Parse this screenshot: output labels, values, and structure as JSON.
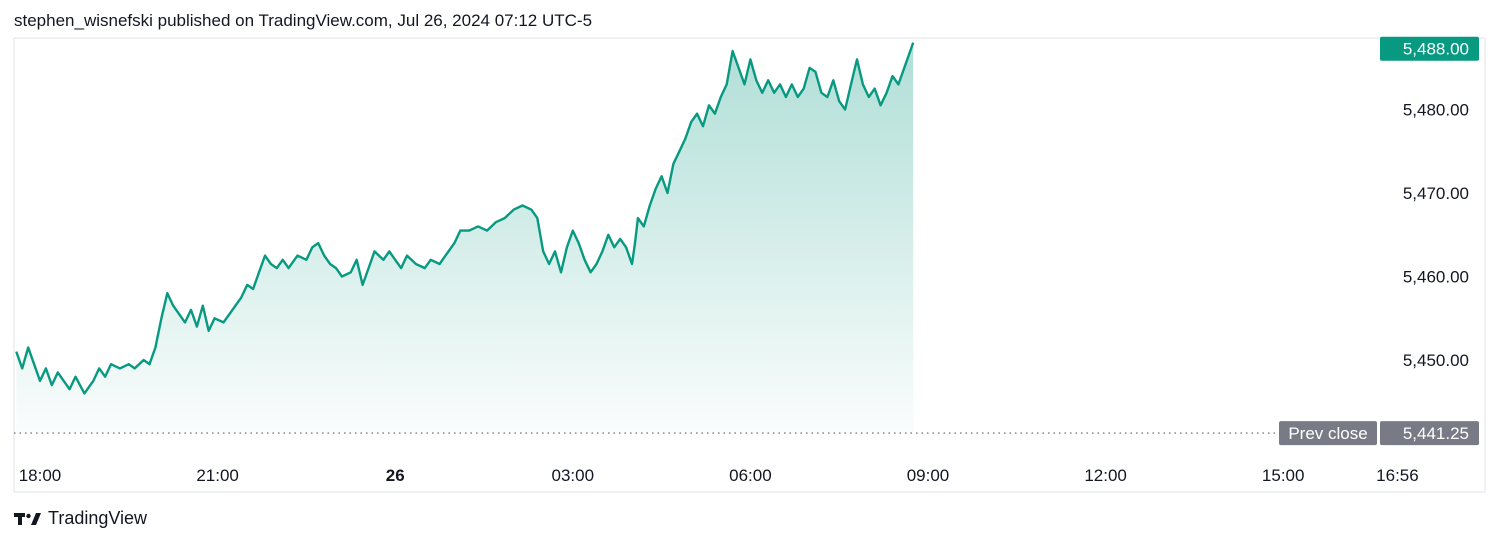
{
  "header": {
    "publisher_line": "stephen_wisnefski published on TradingView.com, Jul 26, 2024 07:12 UTC-5"
  },
  "brand": {
    "name": "TradingView",
    "logo_icon": "tradingview-logo-icon"
  },
  "colors": {
    "line": "#089981",
    "price_tag": "#089981",
    "prev_close_tag": "#787b86",
    "grid_border": "#e0e3eb"
  },
  "chart_data": {
    "type": "area",
    "x_labels": [
      {
        "text": "18:00",
        "h": 0,
        "bold": false
      },
      {
        "text": "21:00",
        "h": 3,
        "bold": false
      },
      {
        "text": "26",
        "h": 6,
        "bold": true
      },
      {
        "text": "03:00",
        "h": 9,
        "bold": false
      },
      {
        "text": "06:00",
        "h": 12,
        "bold": false
      },
      {
        "text": "09:00",
        "h": 15,
        "bold": false
      },
      {
        "text": "12:00",
        "h": 18,
        "bold": false
      },
      {
        "text": "15:00",
        "h": 21,
        "bold": false
      },
      {
        "text": "16:56",
        "h": 22.93,
        "bold": false
      }
    ],
    "y_ticks": [
      "5,450.00",
      "5,460.00",
      "5,470.00",
      "5,480.00"
    ],
    "y_tick_values": [
      5450,
      5460,
      5470,
      5480
    ],
    "ylim": [
      5441.25,
      5488.0
    ],
    "last_price": {
      "label": "5,488.00",
      "value": 5488.0
    },
    "prev_close": {
      "label": "Prev close",
      "value_label": "5,441.25",
      "value": 5441.25
    },
    "series": [
      {
        "points": [
          [
            -0.4,
            5451.0
          ],
          [
            -0.3,
            5449.0
          ],
          [
            -0.2,
            5451.5
          ],
          [
            -0.1,
            5449.5
          ],
          [
            0.0,
            5447.5
          ],
          [
            0.1,
            5449.0
          ],
          [
            0.2,
            5447.0
          ],
          [
            0.3,
            5448.5
          ],
          [
            0.4,
            5447.5
          ],
          [
            0.5,
            5446.5
          ],
          [
            0.6,
            5448.0
          ],
          [
            0.75,
            5446.0
          ],
          [
            0.9,
            5447.5
          ],
          [
            1.0,
            5449.0
          ],
          [
            1.1,
            5448.0
          ],
          [
            1.2,
            5449.5
          ],
          [
            1.35,
            5449.0
          ],
          [
            1.5,
            5449.5
          ],
          [
            1.6,
            5449.0
          ],
          [
            1.75,
            5450.0
          ],
          [
            1.85,
            5449.5
          ],
          [
            1.95,
            5451.5
          ],
          [
            2.05,
            5455.0
          ],
          [
            2.15,
            5458.0
          ],
          [
            2.25,
            5456.5
          ],
          [
            2.35,
            5455.5
          ],
          [
            2.45,
            5454.5
          ],
          [
            2.55,
            5456.0
          ],
          [
            2.65,
            5454.0
          ],
          [
            2.75,
            5456.5
          ],
          [
            2.85,
            5453.5
          ],
          [
            2.95,
            5455.0
          ],
          [
            3.1,
            5454.5
          ],
          [
            3.25,
            5456.0
          ],
          [
            3.4,
            5457.5
          ],
          [
            3.5,
            5459.0
          ],
          [
            3.6,
            5458.5
          ],
          [
            3.7,
            5460.5
          ],
          [
            3.8,
            5462.5
          ],
          [
            3.9,
            5461.5
          ],
          [
            4.0,
            5461.0
          ],
          [
            4.1,
            5462.0
          ],
          [
            4.2,
            5461.0
          ],
          [
            4.35,
            5462.5
          ],
          [
            4.5,
            5462.0
          ],
          [
            4.6,
            5463.5
          ],
          [
            4.7,
            5464.0
          ],
          [
            4.8,
            5462.5
          ],
          [
            4.9,
            5461.5
          ],
          [
            5.0,
            5461.0
          ],
          [
            5.1,
            5460.0
          ],
          [
            5.25,
            5460.5
          ],
          [
            5.35,
            5462.0
          ],
          [
            5.45,
            5459.0
          ],
          [
            5.55,
            5461.0
          ],
          [
            5.65,
            5463.0
          ],
          [
            5.8,
            5462.0
          ],
          [
            5.9,
            5463.0
          ],
          [
            6.0,
            5462.0
          ],
          [
            6.1,
            5461.0
          ],
          [
            6.2,
            5462.5
          ],
          [
            6.35,
            5461.5
          ],
          [
            6.5,
            5461.0
          ],
          [
            6.6,
            5462.0
          ],
          [
            6.75,
            5461.5
          ],
          [
            6.85,
            5462.5
          ],
          [
            7.0,
            5464.0
          ],
          [
            7.1,
            5465.5
          ],
          [
            7.25,
            5465.5
          ],
          [
            7.4,
            5466.0
          ],
          [
            7.55,
            5465.5
          ],
          [
            7.7,
            5466.5
          ],
          [
            7.85,
            5467.0
          ],
          [
            8.0,
            5468.0
          ],
          [
            8.15,
            5468.5
          ],
          [
            8.3,
            5468.0
          ],
          [
            8.4,
            5467.0
          ],
          [
            8.5,
            5463.0
          ],
          [
            8.6,
            5461.5
          ],
          [
            8.7,
            5463.0
          ],
          [
            8.8,
            5460.5
          ],
          [
            8.9,
            5463.5
          ],
          [
            9.0,
            5465.5
          ],
          [
            9.1,
            5464.0
          ],
          [
            9.2,
            5462.0
          ],
          [
            9.3,
            5460.5
          ],
          [
            9.4,
            5461.5
          ],
          [
            9.5,
            5463.0
          ],
          [
            9.6,
            5465.0
          ],
          [
            9.7,
            5463.5
          ],
          [
            9.8,
            5464.5
          ],
          [
            9.9,
            5463.5
          ],
          [
            10.0,
            5461.5
          ],
          [
            10.05,
            5464.0
          ],
          [
            10.1,
            5467.0
          ],
          [
            10.2,
            5466.0
          ],
          [
            10.3,
            5468.5
          ],
          [
            10.4,
            5470.5
          ],
          [
            10.5,
            5472.0
          ],
          [
            10.6,
            5470.0
          ],
          [
            10.7,
            5473.5
          ],
          [
            10.8,
            5475.0
          ],
          [
            10.9,
            5476.5
          ],
          [
            11.0,
            5478.5
          ],
          [
            11.1,
            5479.5
          ],
          [
            11.2,
            5478.0
          ],
          [
            11.3,
            5480.5
          ],
          [
            11.4,
            5479.5
          ],
          [
            11.5,
            5481.5
          ],
          [
            11.6,
            5483.0
          ],
          [
            11.7,
            5487.0
          ],
          [
            11.8,
            5485.0
          ],
          [
            11.9,
            5483.0
          ],
          [
            12.0,
            5486.0
          ],
          [
            12.1,
            5483.5
          ],
          [
            12.2,
            5482.0
          ],
          [
            12.3,
            5483.5
          ],
          [
            12.4,
            5482.0
          ],
          [
            12.5,
            5483.0
          ],
          [
            12.6,
            5481.5
          ],
          [
            12.7,
            5483.0
          ],
          [
            12.8,
            5481.5
          ],
          [
            12.9,
            5482.5
          ],
          [
            13.0,
            5485.0
          ],
          [
            13.1,
            5484.5
          ],
          [
            13.2,
            5482.0
          ],
          [
            13.3,
            5481.5
          ],
          [
            13.4,
            5483.5
          ],
          [
            13.5,
            5481.0
          ],
          [
            13.6,
            5480.0
          ],
          [
            13.7,
            5483.0
          ],
          [
            13.8,
            5486.0
          ],
          [
            13.9,
            5483.0
          ],
          [
            14.0,
            5481.5
          ],
          [
            14.1,
            5482.5
          ],
          [
            14.2,
            5480.5
          ],
          [
            14.3,
            5482.0
          ],
          [
            14.4,
            5484.0
          ],
          [
            14.5,
            5483.0
          ],
          [
            14.6,
            5485.0
          ],
          [
            14.7,
            5487.0
          ],
          [
            14.75,
            5488.0
          ]
        ]
      }
    ]
  }
}
